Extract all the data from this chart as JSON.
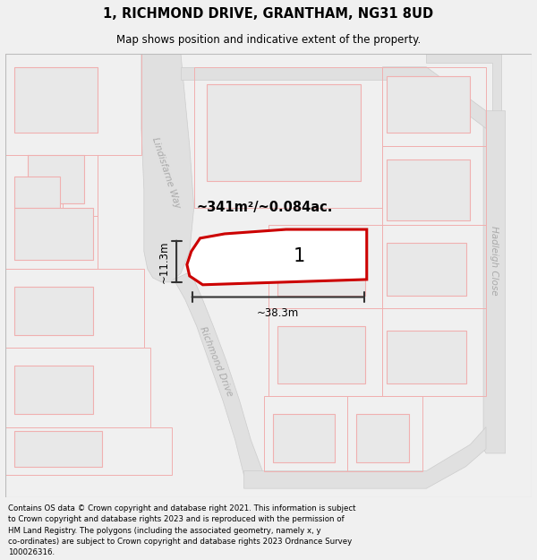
{
  "title": "1, RICHMOND DRIVE, GRANTHAM, NG31 8UD",
  "subtitle": "Map shows position and indicative extent of the property.",
  "footer": "Contains OS data © Crown copyright and database right 2021. This information is subject\nto Crown copyright and database rights 2023 and is reproduced with the permission of\nHM Land Registry. The polygons (including the associated geometry, namely x, y\nco-ordinates) are subject to Crown copyright and database rights 2023 Ordnance Survey\n100026316.",
  "bg_color": "#f0f0f0",
  "map_bg_color": "#ffffff",
  "area_label": "~341m²/~0.084ac.",
  "plot_number": "1",
  "width_label": "~38.3m",
  "height_label": "~11.3m",
  "plot_outline_color": "#cc0000",
  "building_fill": "#e8e8e8",
  "building_edge": "#f0b0b0",
  "plot_outline_thin": "#f0b0b0",
  "road_fill": "#e0e0e0",
  "road_edge": "#cccccc",
  "street_color": "#aaaaaa",
  "measure_color": "#333333"
}
